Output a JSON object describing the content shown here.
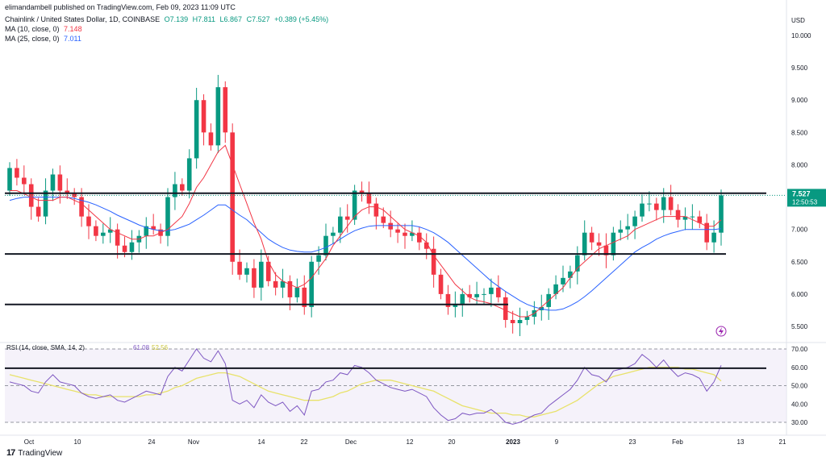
{
  "header": {
    "publisher": "elimandambell published on TradingView.com, Feb 09, 2023 11:09 UTC",
    "symbol": "Chainlink / United States Dollar, 1D, COINBASE",
    "ohlc": {
      "o": "O7.139",
      "h": "H7.811",
      "l": "L6.867",
      "c": "C7.527",
      "chg": "+0.389 (+5.45%)"
    },
    "ma10_label": "MA (10, close, 0)",
    "ma10_value": "7.148",
    "ma25_label": "MA (25, close, 0)",
    "ma25_value": "7.011"
  },
  "footer": {
    "brand": "TradingView"
  },
  "colors": {
    "up": "#089981",
    "down": "#f23645",
    "ma10": "#f23645",
    "ma25": "#2962ff",
    "rsi": "#7e57c2",
    "rsi_ma": "#e8e26a",
    "hline": "#131722"
  },
  "chart_data": [
    {
      "type": "candlestick",
      "title": "Chainlink / United States Dollar, 1D, COINBASE",
      "y_unit": "USD",
      "ylim": [
        5.3,
        10.3
      ],
      "ytick_labels": [
        "5.500",
        "6.000",
        "6.500",
        "7.000",
        "7.500",
        "8.000",
        "8.500",
        "9.000",
        "9.500",
        "10.000"
      ],
      "xtick_labels": [
        "Oct",
        "10",
        "24",
        "Nov",
        "14",
        "22",
        "Dec",
        "12",
        "20",
        "2023",
        "9",
        "23",
        "Feb",
        "13",
        "21"
      ],
      "last_price_label": "7.527",
      "countdown_label": "12:50:53",
      "horizontal_levels": [
        7.56,
        6.62,
        5.84
      ],
      "closes": [
        7.95,
        7.8,
        7.7,
        7.35,
        7.2,
        7.6,
        7.85,
        7.6,
        7.55,
        7.5,
        7.2,
        7.05,
        6.9,
        6.95,
        7.0,
        6.75,
        6.65,
        6.8,
        6.9,
        7.05,
        7.0,
        6.9,
        7.5,
        7.7,
        7.6,
        8.1,
        9.0,
        8.5,
        8.3,
        9.2,
        8.5,
        6.5,
        6.3,
        6.4,
        6.1,
        6.5,
        6.2,
        6.1,
        6.2,
        5.95,
        6.1,
        5.8,
        6.5,
        6.6,
        6.9,
        6.95,
        7.2,
        7.15,
        7.6,
        7.55,
        7.4,
        7.2,
        7.1,
        7.0,
        6.95,
        6.9,
        6.95,
        6.8,
        6.7,
        6.3,
        6.0,
        5.8,
        5.85,
        6.0,
        5.95,
        6.0,
        6.0,
        6.1,
        5.95,
        5.6,
        5.55,
        5.6,
        5.65,
        5.75,
        5.8,
        6.0,
        6.15,
        6.25,
        6.35,
        6.6,
        6.95,
        6.8,
        6.75,
        6.6,
        6.95,
        7.0,
        7.05,
        7.2,
        7.4,
        7.4,
        7.3,
        7.5,
        7.3,
        7.15,
        7.2,
        7.2,
        7.1,
        6.8,
        6.95,
        7.527
      ],
      "ma10": [
        7.6,
        7.6,
        7.55,
        7.5,
        7.45,
        7.45,
        7.45,
        7.5,
        7.5,
        7.45,
        7.4,
        7.3,
        7.2,
        7.1,
        7.0,
        6.95,
        6.9,
        6.85,
        6.85,
        6.9,
        6.9,
        6.95,
        7.0,
        7.1,
        7.2,
        7.4,
        7.65,
        7.8,
        8.0,
        8.2,
        8.3,
        8.0,
        7.7,
        7.4,
        7.1,
        6.85,
        6.5,
        6.3,
        6.2,
        6.15,
        6.1,
        6.15,
        6.25,
        6.4,
        6.55,
        6.75,
        6.9,
        7.05,
        7.2,
        7.3,
        7.35,
        7.35,
        7.3,
        7.2,
        7.1,
        7.0,
        6.95,
        6.9,
        6.8,
        6.6,
        6.45,
        6.3,
        6.15,
        6.05,
        5.95,
        5.9,
        5.88,
        5.85,
        5.8,
        5.75,
        5.7,
        5.65,
        5.65,
        5.7,
        5.8,
        5.9,
        6.0,
        6.1,
        6.25,
        6.4,
        6.5,
        6.6,
        6.7,
        6.75,
        6.8,
        6.85,
        6.9,
        7.0,
        7.05,
        7.1,
        7.15,
        7.2,
        7.2,
        7.2,
        7.2,
        7.15,
        7.1,
        7.05,
        7.05,
        7.148
      ],
      "ma25": [
        7.45,
        7.48,
        7.5,
        7.5,
        7.5,
        7.5,
        7.5,
        7.5,
        7.5,
        7.48,
        7.45,
        7.42,
        7.38,
        7.33,
        7.28,
        7.22,
        7.17,
        7.12,
        7.07,
        7.03,
        7.0,
        6.98,
        6.98,
        7.0,
        7.04,
        7.08,
        7.15,
        7.22,
        7.3,
        7.38,
        7.38,
        7.3,
        7.22,
        7.15,
        7.05,
        6.95,
        6.85,
        6.78,
        6.72,
        6.68,
        6.66,
        6.65,
        6.65,
        6.68,
        6.72,
        6.78,
        6.85,
        6.92,
        6.98,
        7.02,
        7.05,
        7.06,
        7.06,
        7.06,
        7.06,
        7.06,
        7.06,
        7.04,
        7.0,
        6.95,
        6.88,
        6.8,
        6.7,
        6.6,
        6.5,
        6.4,
        6.3,
        6.2,
        6.12,
        6.04,
        5.97,
        5.9,
        5.84,
        5.8,
        5.77,
        5.75,
        5.75,
        5.77,
        5.82,
        5.88,
        5.96,
        6.05,
        6.15,
        6.25,
        6.35,
        6.45,
        6.55,
        6.65,
        6.72,
        6.78,
        6.85,
        6.9,
        6.94,
        6.97,
        7.0,
        7.0,
        7.0,
        7.0,
        7.0,
        7.011
      ]
    },
    {
      "type": "line",
      "title": "RSI (14, close, SMA, 14, 2)",
      "rsi_value_label": "61.08",
      "rsi_ma_value_label": "52.56",
      "ylim": [
        28,
        72
      ],
      "ytick_labels": [
        "30.00",
        "40.00",
        "50.00",
        "60.00",
        "70.00"
      ],
      "band": [
        30,
        70
      ],
      "horizontal_levels": [
        59.5
      ],
      "rsi": [
        52,
        51,
        50,
        47,
        46,
        52,
        56,
        52,
        51,
        50,
        46,
        44,
        43,
        44,
        45,
        42,
        41,
        43,
        45,
        47,
        46,
        45,
        55,
        60,
        58,
        64,
        70,
        65,
        63,
        69,
        62,
        42,
        40,
        42,
        38,
        45,
        41,
        39,
        41,
        36,
        39,
        34,
        47,
        48,
        52,
        53,
        57,
        56,
        61,
        60,
        57,
        53,
        51,
        49,
        48,
        47,
        48,
        46,
        44,
        38,
        34,
        31,
        32,
        35,
        34,
        35,
        35,
        37,
        34,
        30,
        29,
        30,
        32,
        34,
        35,
        39,
        42,
        45,
        48,
        53,
        60,
        56,
        55,
        52,
        58,
        59,
        60,
        62,
        67,
        64,
        60,
        64,
        59,
        55,
        57,
        56,
        54,
        47,
        52,
        61.08
      ],
      "rsi_ma": [
        56,
        55,
        54,
        53,
        52,
        51,
        50,
        49,
        48,
        47,
        46,
        45,
        45,
        44,
        44,
        44,
        44,
        44,
        44,
        45,
        45,
        46,
        47,
        49,
        50,
        52,
        54,
        55,
        56,
        57,
        57,
        56,
        55,
        53,
        51,
        49,
        47,
        46,
        45,
        44,
        43,
        42,
        42,
        42,
        43,
        44,
        46,
        47,
        49,
        51,
        52,
        53,
        53,
        53,
        52,
        51,
        50,
        49,
        48,
        47,
        45,
        43,
        41,
        39,
        38,
        37,
        36,
        35,
        35,
        35,
        34,
        34,
        33,
        33,
        34,
        35,
        36,
        38,
        40,
        42,
        45,
        48,
        51,
        53,
        55,
        56,
        57,
        58,
        59,
        60,
        60,
        60,
        60,
        60,
        59,
        59,
        58,
        57,
        56,
        52.56
      ]
    }
  ]
}
